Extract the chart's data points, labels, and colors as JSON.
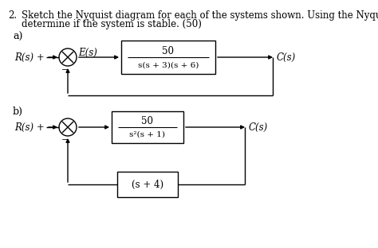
{
  "title_number": "2.",
  "title_line1": "Sketch the Nyquist diagram for each of the systems shown. Using the Nyquist criterion,",
  "title_line2": "determine if the system is stable. (50)",
  "label_a": "a)",
  "label_b": "b)",
  "block_a_top": "50",
  "block_a_bot": "s(s + 3)(s + 6)",
  "block_b_top": "50",
  "block_b_bot": "s²(s + 1)",
  "block_b2": "(s + 4)",
  "Rs_a": "R(s) +",
  "Rs_b": "R(s) +",
  "Es_a": "E(s)",
  "Cs_a": "C(s)",
  "Cs_b": "C(s)",
  "minus": "−",
  "bg_color": "#ffffff",
  "fg_color": "#000000",
  "font_size_title": 8.5,
  "font_size_label": 9.0,
  "font_size_block": 8.5,
  "font_size_small": 7.5
}
